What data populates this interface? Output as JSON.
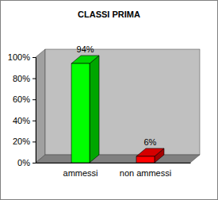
{
  "chart_data": {
    "type": "bar",
    "title": "CLASSI PRIMA",
    "categories": [
      "ammessi",
      "non ammessi"
    ],
    "values": [
      94,
      6
    ],
    "value_labels": [
      "94%",
      "6%"
    ],
    "colors": [
      "#00ff00",
      "#ff0000"
    ],
    "ylim": [
      0,
      100
    ],
    "yticks": [
      {
        "value": 0,
        "label": "0%"
      },
      {
        "value": 20,
        "label": "20%"
      },
      {
        "value": 40,
        "label": "40%"
      },
      {
        "value": 60,
        "label": "60%"
      },
      {
        "value": 80,
        "label": "80%"
      },
      {
        "value": 100,
        "label": "100%"
      }
    ],
    "grid": false,
    "data_labels": true
  }
}
